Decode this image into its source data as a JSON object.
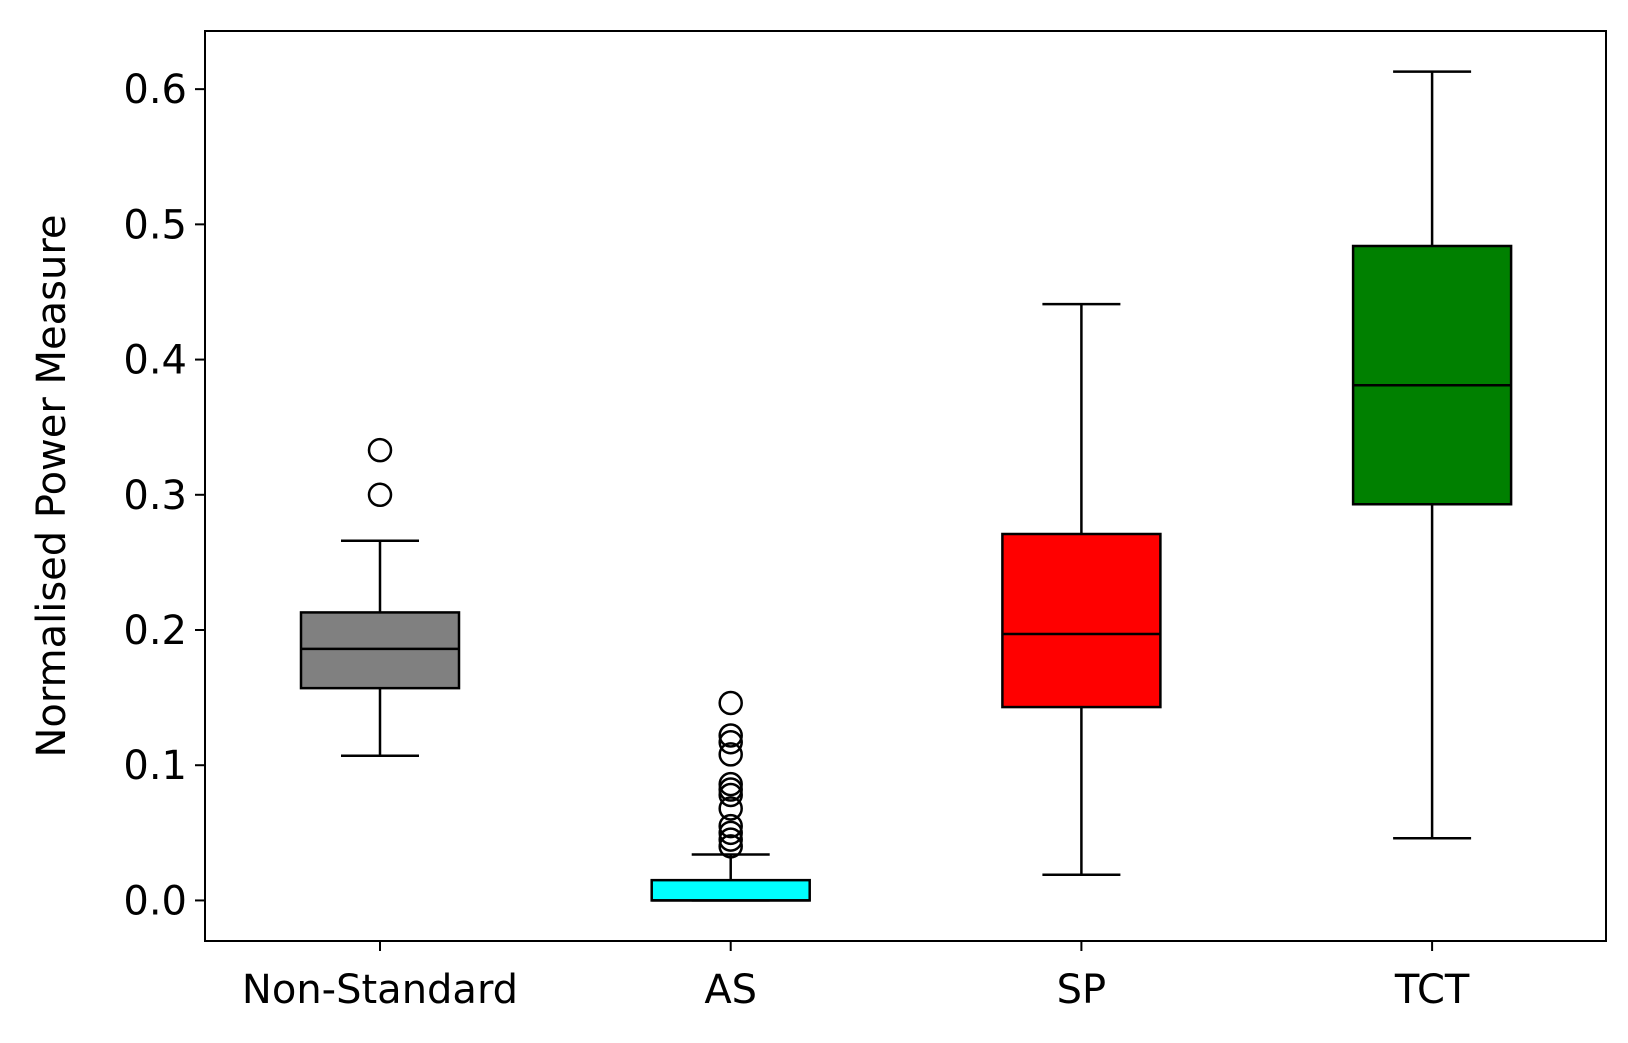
{
  "chart_data": {
    "type": "box",
    "title": "",
    "xlabel": "",
    "ylabel": "Normalised Power Measure",
    "ylim": [
      -0.03,
      0.643
    ],
    "yticks": [
      0.0,
      0.1,
      0.2,
      0.3,
      0.4,
      0.5,
      0.6
    ],
    "ytick_labels": [
      "0.0",
      "0.1",
      "0.2",
      "0.3",
      "0.4",
      "0.5",
      "0.6"
    ],
    "grid": false,
    "legend": "none",
    "categories": [
      "Non-Standard",
      "AS",
      "SP",
      "TCT"
    ],
    "series": [
      {
        "category": "Non-Standard",
        "color": "#808080",
        "whisker_low": 0.107,
        "q1": 0.157,
        "median": 0.186,
        "q3": 0.213,
        "whisker_high": 0.266,
        "outliers": [
          0.3,
          0.333
        ]
      },
      {
        "category": "AS",
        "color": "#00ffff",
        "whisker_low": 0.0,
        "q1": 0.0,
        "median": 0.0,
        "q3": 0.015,
        "whisker_high": 0.034,
        "outliers": [
          0.04,
          0.045,
          0.05,
          0.055,
          0.068,
          0.078,
          0.082,
          0.086,
          0.108,
          0.117,
          0.122,
          0.146
        ]
      },
      {
        "category": "SP",
        "color": "#ff0000",
        "whisker_low": 0.019,
        "q1": 0.143,
        "median": 0.197,
        "q3": 0.271,
        "whisker_high": 0.441,
        "outliers": []
      },
      {
        "category": "TCT",
        "color": "#008000",
        "whisker_low": 0.046,
        "q1": 0.293,
        "median": 0.381,
        "q3": 0.484,
        "whisker_high": 0.613,
        "outliers": []
      }
    ]
  }
}
